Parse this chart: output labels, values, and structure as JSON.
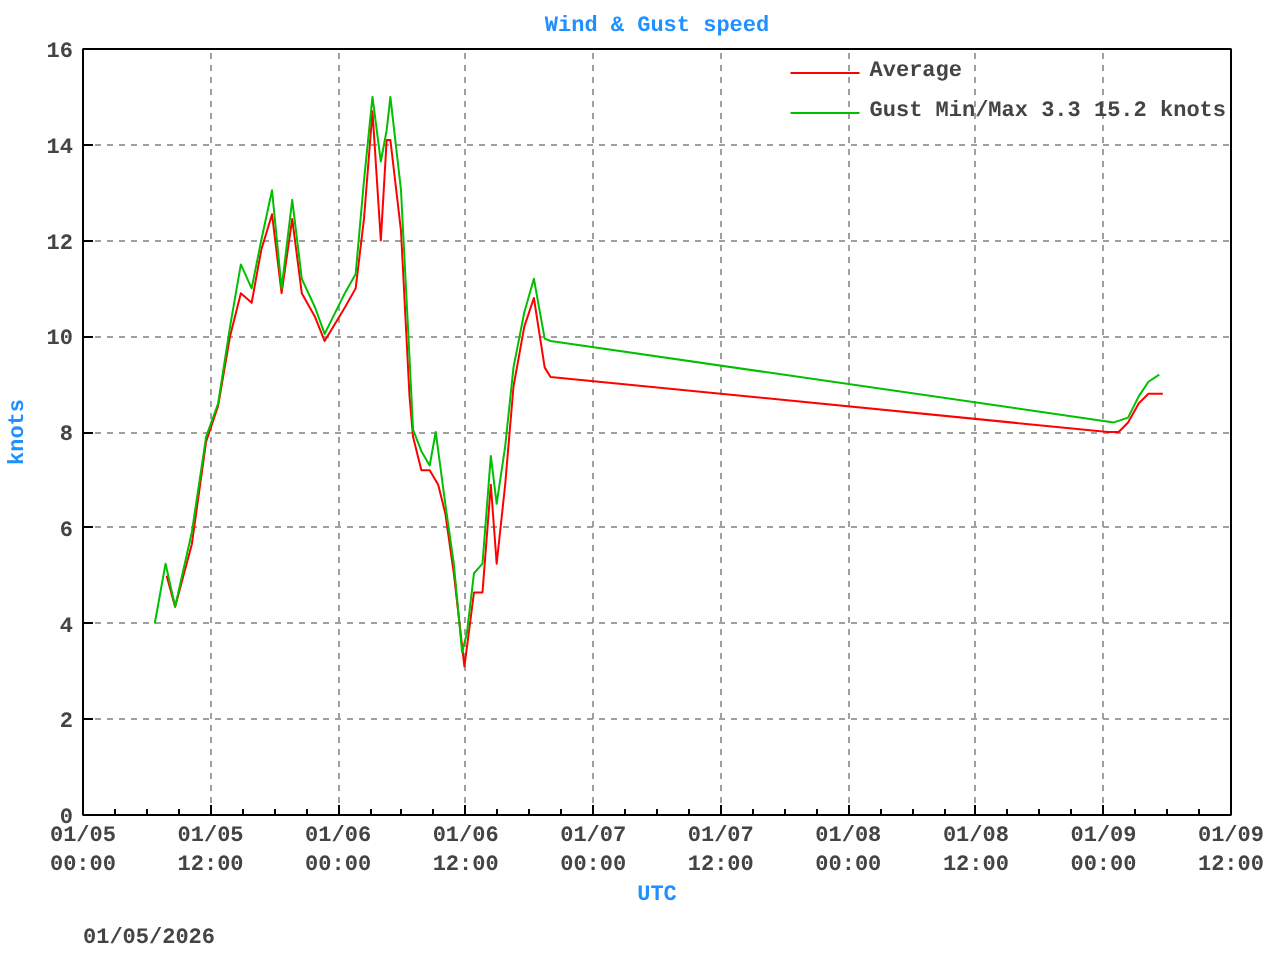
{
  "chart_data": {
    "type": "line",
    "title": "Wind & Gust speed",
    "xlabel": "UTC",
    "ylabel": "knots",
    "annotations": [
      "01/05/2026"
    ],
    "xlim": [
      "2026-01-05T00:00",
      "2026-01-09T12:00"
    ],
    "ylim": [
      0,
      16
    ],
    "xticks": [
      {
        "value": "2026-01-05T00:00",
        "label": "01/05\n00:00"
      },
      {
        "value": "2026-01-05T12:00",
        "label": "01/05\n12:00"
      },
      {
        "value": "2026-01-06T00:00",
        "label": "01/06\n00:00"
      },
      {
        "value": "2026-01-06T12:00",
        "label": "01/06\n12:00"
      },
      {
        "value": "2026-01-07T00:00",
        "label": "01/07\n00:00"
      },
      {
        "value": "2026-01-07T12:00",
        "label": "01/07\n12:00"
      },
      {
        "value": "2026-01-08T00:00",
        "label": "01/08\n00:00"
      },
      {
        "value": "2026-01-08T12:00",
        "label": "01/08\n12:00"
      },
      {
        "value": "2026-01-09T00:00",
        "label": "01/09\n00:00"
      },
      {
        "value": "2026-01-09T12:00",
        "label": "01/09\n12:00"
      }
    ],
    "yticks": [
      0,
      2,
      4,
      6,
      8,
      10,
      12,
      14,
      16
    ],
    "grid": true,
    "legend": "top right",
    "line_style": "solid",
    "marker": "none",
    "series": [
      {
        "name": "Average",
        "color": "#ff0000",
        "x": [
          "2026-01-05T07:52",
          "2026-01-05T08:40",
          "2026-01-05T10:14",
          "2026-01-05T11:35",
          "2026-01-05T12:43",
          "2026-01-05T13:50",
          "2026-01-05T14:51",
          "2026-01-05T15:52",
          "2026-01-05T16:46",
          "2026-01-05T17:47",
          "2026-01-05T18:41",
          "2026-01-05T19:41",
          "2026-01-05T20:35",
          "2026-01-05T21:50",
          "2026-01-05T22:44",
          "2026-01-06T00:38",
          "2026-01-06T01:39",
          "2026-01-06T02:26",
          "2026-01-06T03:14",
          "2026-01-06T04:01",
          "2026-01-06T04:34",
          "2026-01-06T04:55",
          "2026-01-06T05:55",
          "2026-01-06T06:43",
          "2026-01-06T07:03",
          "2026-01-06T07:50",
          "2026-01-06T08:37",
          "2026-01-06T09:25",
          "2026-01-06T10:05",
          "2026-01-06T10:53",
          "2026-01-06T11:53",
          "2026-01-06T12:47",
          "2026-01-06T13:35",
          "2026-01-06T14:22",
          "2026-01-06T14:55",
          "2026-01-06T15:43",
          "2026-01-06T16:30",
          "2026-01-06T17:31",
          "2026-01-06T18:25",
          "2026-01-06T19:26",
          "2026-01-06T19:59",
          "2026-01-09T00:25",
          "2026-01-09T01:26",
          "2026-01-09T02:19",
          "2026-01-09T03:20",
          "2026-01-09T04:14",
          "2026-01-09T05:35"
        ],
        "values": [
          5.0,
          4.35,
          5.65,
          7.8,
          8.55,
          10.0,
          10.9,
          10.7,
          11.8,
          12.55,
          10.9,
          12.45,
          10.9,
          10.4,
          9.9,
          10.6,
          11.0,
          12.45,
          14.7,
          12.0,
          14.1,
          14.1,
          12.2,
          8.75,
          7.9,
          7.2,
          7.2,
          6.9,
          6.3,
          5.05,
          3.1,
          4.65,
          4.65,
          6.9,
          5.25,
          6.9,
          8.95,
          10.2,
          10.8,
          9.35,
          9.15,
          8.0,
          8.0,
          8.2,
          8.6,
          8.8,
          8.8
        ]
      },
      {
        "name": "Gust Min/Max 3.3 15.2 knots",
        "color": "#00c000",
        "x": [
          "2026-01-05T06:45",
          "2026-01-05T07:46",
          "2026-01-05T08:40",
          "2026-01-05T10:14",
          "2026-01-05T11:35",
          "2026-01-05T12:43",
          "2026-01-05T13:50",
          "2026-01-05T14:51",
          "2026-01-05T15:52",
          "2026-01-05T16:46",
          "2026-01-05T17:47",
          "2026-01-05T18:41",
          "2026-01-05T19:41",
          "2026-01-05T20:35",
          "2026-01-05T21:50",
          "2026-01-05T22:44",
          "2026-01-06T00:38",
          "2026-01-06T01:39",
          "2026-01-06T02:26",
          "2026-01-06T03:14",
          "2026-01-06T04:01",
          "2026-01-06T04:34",
          "2026-01-06T04:55",
          "2026-01-06T05:55",
          "2026-01-06T06:43",
          "2026-01-06T07:03",
          "2026-01-06T07:50",
          "2026-01-06T08:37",
          "2026-01-06T09:11",
          "2026-01-06T10:05",
          "2026-01-06T10:53",
          "2026-01-06T11:40",
          "2026-01-06T12:07",
          "2026-01-06T12:47",
          "2026-01-06T13:35",
          "2026-01-06T14:22",
          "2026-01-06T14:55",
          "2026-01-06T15:43",
          "2026-01-06T16:30",
          "2026-01-06T17:31",
          "2026-01-06T18:25",
          "2026-01-06T19:26",
          "2026-01-06T19:59",
          "2026-01-09T00:59",
          "2026-01-09T02:19",
          "2026-01-09T03:20",
          "2026-01-09T04:14",
          "2026-01-09T05:15"
        ],
        "values": [
          4.0,
          5.25,
          4.35,
          5.9,
          7.9,
          8.6,
          10.2,
          11.5,
          11.0,
          12.0,
          13.05,
          11.0,
          12.85,
          11.2,
          10.6,
          10.05,
          10.9,
          11.3,
          13.25,
          15.0,
          13.65,
          14.3,
          15.0,
          13.05,
          9.55,
          8.05,
          7.6,
          7.3,
          8.0,
          6.5,
          5.25,
          3.4,
          3.8,
          5.05,
          5.25,
          7.5,
          6.5,
          7.7,
          9.35,
          10.5,
          11.2,
          9.95,
          9.9,
          8.2,
          8.3,
          8.75,
          9.05,
          9.2
        ]
      }
    ]
  }
}
